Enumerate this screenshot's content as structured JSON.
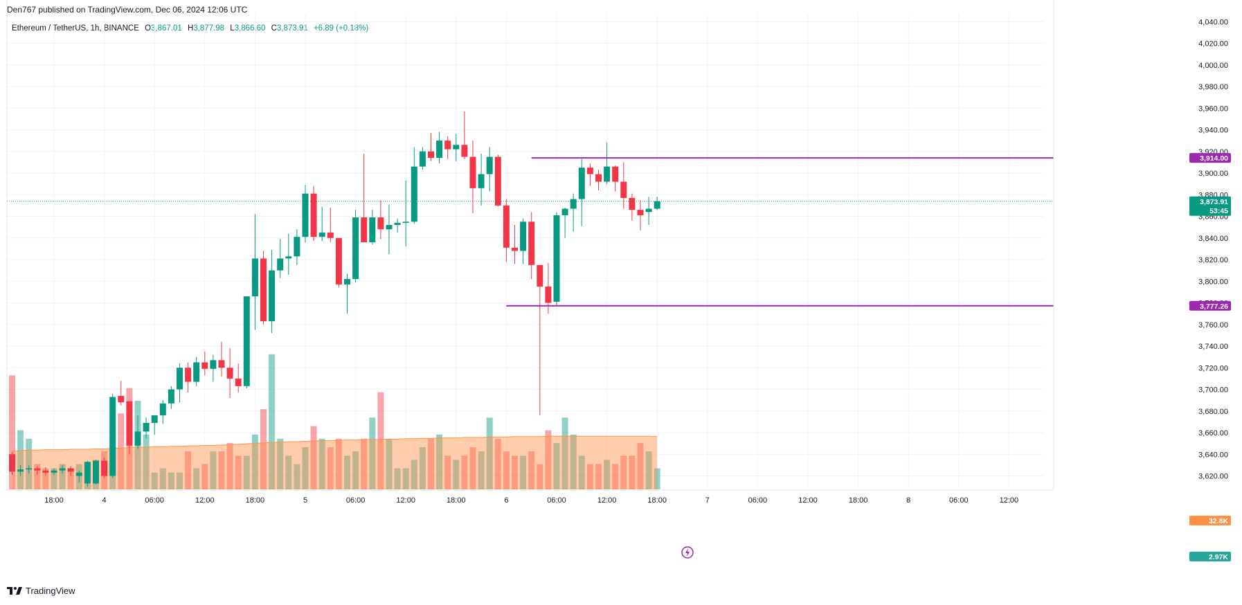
{
  "header": {
    "published": "Den767 published on TradingView.com, Dec 06, 2024 12:06 UTC"
  },
  "legend": {
    "symbol": "Ethereum / TetherUS, 1h, BINANCE",
    "open_label": "O",
    "open": "3,867.01",
    "high_label": "H",
    "high": "3,877.98",
    "low_label": "L",
    "low": "3,866.60",
    "close_label": "C",
    "close": "3,873.91",
    "change": "+6.89 (+0.18%)"
  },
  "footer": {
    "brand": "TradingView"
  },
  "colors": {
    "up": "#089981",
    "down": "#f23645",
    "level": "#9c27b0",
    "volume_ma": "#ff9147"
  },
  "chart_data": {
    "type": "candlestick",
    "symbol": "ETHUSDT",
    "interval": "1h",
    "ylim": [
      3612,
      4044
    ],
    "y_ticks": [
      3620,
      3640,
      3660,
      3680,
      3700,
      3720,
      3740,
      3760,
      3780,
      3800,
      3820,
      3840,
      3860,
      3880,
      3900,
      3920,
      3940,
      3960,
      3980,
      4000,
      4020,
      4040
    ],
    "y_tick_labels": [
      "3,620.00",
      "3,640.00",
      "3,660.00",
      "3,680.00",
      "3,700.00",
      "3,720.00",
      "3,740.00",
      "3,760.00",
      "3,780.00",
      "3,800.00",
      "3,820.00",
      "3,840.00",
      "3,860.00",
      "3,880.00",
      "3,900.00",
      "3,920.00",
      "3,940.00",
      "3,960.00",
      "3,980.00",
      "4,000.00",
      "4,020.00",
      "4,040.00"
    ],
    "x_ticks": [
      {
        "hour": 5,
        "label": "18:00"
      },
      {
        "hour": 11,
        "label": "4"
      },
      {
        "hour": 17,
        "label": "06:00"
      },
      {
        "hour": 23,
        "label": "12:00"
      },
      {
        "hour": 29,
        "label": "18:00"
      },
      {
        "hour": 35,
        "label": "5"
      },
      {
        "hour": 41,
        "label": "06:00"
      },
      {
        "hour": 47,
        "label": "12:00"
      },
      {
        "hour": 53,
        "label": "18:00"
      },
      {
        "hour": 59,
        "label": "6"
      },
      {
        "hour": 65,
        "label": "06:00"
      },
      {
        "hour": 71,
        "label": "12:00"
      },
      {
        "hour": 77,
        "label": "18:00"
      },
      {
        "hour": 83,
        "label": "7"
      },
      {
        "hour": 89,
        "label": "06:00"
      },
      {
        "hour": 95,
        "label": "12:00"
      },
      {
        "hour": 101,
        "label": "18:00"
      },
      {
        "hour": 107,
        "label": "8"
      },
      {
        "hour": 113,
        "label": "06:00"
      },
      {
        "hour": 119,
        "label": "12:00"
      }
    ],
    "candles": [
      {
        "o": 3640,
        "h": 3642,
        "l": 3621,
        "c": 3624
      },
      {
        "o": 3624,
        "h": 3630,
        "l": 3620,
        "c": 3626
      },
      {
        "o": 3626,
        "h": 3630,
        "l": 3622,
        "c": 3627
      },
      {
        "o": 3627,
        "h": 3629,
        "l": 3621,
        "c": 3625
      },
      {
        "o": 3625,
        "h": 3628,
        "l": 3620,
        "c": 3623
      },
      {
        "o": 3623,
        "h": 3627,
        "l": 3621,
        "c": 3625
      },
      {
        "o": 3625,
        "h": 3630,
        "l": 3622,
        "c": 3627
      },
      {
        "o": 3627,
        "h": 3629,
        "l": 3620,
        "c": 3624
      },
      {
        "o": 3620,
        "h": 3625,
        "l": 3614,
        "c": 3623
      },
      {
        "o": 3613,
        "h": 3634,
        "l": 3610,
        "c": 3633
      },
      {
        "o": 3613,
        "h": 3635,
        "l": 3612,
        "c": 3634
      },
      {
        "o": 3634,
        "h": 3637,
        "l": 3618,
        "c": 3620
      },
      {
        "o": 3620,
        "h": 3696,
        "l": 3618,
        "c": 3693
      },
      {
        "o": 3694,
        "h": 3708,
        "l": 3685,
        "c": 3688
      },
      {
        "o": 3689,
        "h": 3689,
        "l": 3640,
        "c": 3648
      },
      {
        "o": 3648,
        "h": 3676,
        "l": 3645,
        "c": 3661
      },
      {
        "o": 3661,
        "h": 3674,
        "l": 3655,
        "c": 3669
      },
      {
        "o": 3669,
        "h": 3676,
        "l": 3658,
        "c": 3676
      },
      {
        "o": 3676,
        "h": 3690,
        "l": 3668,
        "c": 3687
      },
      {
        "o": 3687,
        "h": 3703,
        "l": 3682,
        "c": 3700
      },
      {
        "o": 3700,
        "h": 3724,
        "l": 3688,
        "c": 3720
      },
      {
        "o": 3720,
        "h": 3725,
        "l": 3697,
        "c": 3707
      },
      {
        "o": 3707,
        "h": 3730,
        "l": 3703,
        "c": 3725
      },
      {
        "o": 3725,
        "h": 3735,
        "l": 3713,
        "c": 3719
      },
      {
        "o": 3719,
        "h": 3732,
        "l": 3707,
        "c": 3727
      },
      {
        "o": 3727,
        "h": 3744,
        "l": 3712,
        "c": 3720
      },
      {
        "o": 3720,
        "h": 3738,
        "l": 3692,
        "c": 3710
      },
      {
        "o": 3710,
        "h": 3724,
        "l": 3697,
        "c": 3703
      },
      {
        "o": 3703,
        "h": 3784,
        "l": 3701,
        "c": 3786
      },
      {
        "o": 3786,
        "h": 3862,
        "l": 3755,
        "c": 3821
      },
      {
        "o": 3821,
        "h": 3828,
        "l": 3760,
        "c": 3763
      },
      {
        "o": 3763,
        "h": 3829,
        "l": 3752,
        "c": 3810
      },
      {
        "o": 3810,
        "h": 3839,
        "l": 3803,
        "c": 3821
      },
      {
        "o": 3821,
        "h": 3844,
        "l": 3806,
        "c": 3823
      },
      {
        "o": 3823,
        "h": 3848,
        "l": 3815,
        "c": 3841
      },
      {
        "o": 3841,
        "h": 3889,
        "l": 3836,
        "c": 3881
      },
      {
        "o": 3881,
        "h": 3888,
        "l": 3837,
        "c": 3841
      },
      {
        "o": 3841,
        "h": 3869,
        "l": 3837,
        "c": 3845
      },
      {
        "o": 3845,
        "h": 3868,
        "l": 3836,
        "c": 3840
      },
      {
        "o": 3840,
        "h": 3840,
        "l": 3794,
        "c": 3797
      },
      {
        "o": 3797,
        "h": 3807,
        "l": 3770,
        "c": 3802
      },
      {
        "o": 3802,
        "h": 3866,
        "l": 3799,
        "c": 3859
      },
      {
        "o": 3859,
        "h": 3918,
        "l": 3836,
        "c": 3836
      },
      {
        "o": 3836,
        "h": 3866,
        "l": 3834,
        "c": 3859
      },
      {
        "o": 3859,
        "h": 3875,
        "l": 3839,
        "c": 3848
      },
      {
        "o": 3848,
        "h": 3871,
        "l": 3825,
        "c": 3852
      },
      {
        "o": 3852,
        "h": 3858,
        "l": 3845,
        "c": 3854
      },
      {
        "o": 3854,
        "h": 3893,
        "l": 3832,
        "c": 3855
      },
      {
        "o": 3855,
        "h": 3924,
        "l": 3853,
        "c": 3906
      },
      {
        "o": 3906,
        "h": 3924,
        "l": 3903,
        "c": 3920
      },
      {
        "o": 3920,
        "h": 3937,
        "l": 3911,
        "c": 3914
      },
      {
        "o": 3914,
        "h": 3938,
        "l": 3909,
        "c": 3930
      },
      {
        "o": 3930,
        "h": 3934,
        "l": 3913,
        "c": 3922
      },
      {
        "o": 3922,
        "h": 3936,
        "l": 3911,
        "c": 3926
      },
      {
        "o": 3926,
        "h": 3957,
        "l": 3913,
        "c": 3915
      },
      {
        "o": 3915,
        "h": 3930,
        "l": 3863,
        "c": 3886
      },
      {
        "o": 3886,
        "h": 3918,
        "l": 3870,
        "c": 3899
      },
      {
        "o": 3899,
        "h": 3924,
        "l": 3883,
        "c": 3915
      },
      {
        "o": 3915,
        "h": 3917,
        "l": 3869,
        "c": 3870
      },
      {
        "o": 3870,
        "h": 3876,
        "l": 3818,
        "c": 3831
      },
      {
        "o": 3831,
        "h": 3852,
        "l": 3816,
        "c": 3828
      },
      {
        "o": 3828,
        "h": 3858,
        "l": 3816,
        "c": 3855
      },
      {
        "o": 3855,
        "h": 3864,
        "l": 3802,
        "c": 3815
      },
      {
        "o": 3815,
        "h": 3815,
        "l": 3676,
        "c": 3795
      },
      {
        "o": 3795,
        "h": 3817,
        "l": 3770,
        "c": 3780
      },
      {
        "o": 3781,
        "h": 3864,
        "l": 3777,
        "c": 3861
      },
      {
        "o": 3861,
        "h": 3868,
        "l": 3840,
        "c": 3867
      },
      {
        "o": 3867,
        "h": 3881,
        "l": 3846,
        "c": 3876
      },
      {
        "o": 3876,
        "h": 3913,
        "l": 3851,
        "c": 3905
      },
      {
        "o": 3905,
        "h": 3909,
        "l": 3888,
        "c": 3899
      },
      {
        "o": 3899,
        "h": 3903,
        "l": 3884,
        "c": 3892
      },
      {
        "o": 3892,
        "h": 3928,
        "l": 3890,
        "c": 3906
      },
      {
        "o": 3906,
        "h": 3907,
        "l": 3883,
        "c": 3892
      },
      {
        "o": 3892,
        "h": 3910,
        "l": 3867,
        "c": 3877
      },
      {
        "o": 3877,
        "h": 3881,
        "l": 3856,
        "c": 3866
      },
      {
        "o": 3866,
        "h": 3875,
        "l": 3847,
        "c": 3861
      },
      {
        "o": 3864,
        "h": 3878,
        "l": 3852,
        "c": 3867
      },
      {
        "o": 3867,
        "h": 3878,
        "l": 3866,
        "c": 3874
      }
    ],
    "volumes": [
      27,
      14,
      12,
      6,
      5,
      5,
      6,
      5,
      6,
      5,
      7,
      9,
      14,
      18,
      24,
      21,
      13,
      4,
      5,
      4,
      4,
      9,
      5,
      6,
      9,
      9,
      11,
      8,
      8,
      13,
      19,
      32,
      12,
      8,
      6,
      10,
      15,
      12,
      10,
      12,
      8,
      9,
      12,
      17,
      23,
      12,
      5,
      5,
      7,
      10,
      12,
      13,
      8,
      7,
      8,
      10,
      9,
      17,
      12,
      9,
      8,
      8,
      9,
      6,
      14,
      11,
      17,
      13,
      8,
      6,
      6,
      7,
      6,
      8,
      8,
      11,
      9,
      5
    ],
    "volume_ma": [
      9,
      9.2,
      9.3,
      9.3,
      9.4,
      9.4,
      9.4,
      9.5,
      9.5,
      9.5,
      9.6,
      9.6,
      9.7,
      9.8,
      9.9,
      10,
      10,
      10.1,
      10.1,
      10.2,
      10.2,
      10.3,
      10.3,
      10.4,
      10.4,
      10.5,
      10.6,
      10.7,
      10.8,
      10.9,
      11,
      11.1,
      11.2,
      11.3,
      11.3,
      11.4,
      11.5,
      11.5,
      11.6,
      11.6,
      11.7,
      11.7,
      11.8,
      11.8,
      11.8,
      11.9,
      11.9,
      12,
      12,
      12.1,
      12.1,
      12.2,
      12.2,
      12.2,
      12.3,
      12.3,
      12.3,
      12.4,
      12.4,
      12.4,
      12.5,
      12.5,
      12.5,
      12.5,
      12.6,
      12.6,
      12.6,
      12.6,
      12.6,
      12.6,
      12.6,
      12.6,
      12.6,
      12.6,
      12.6,
      12.6,
      12.6,
      12.5
    ],
    "levels": [
      {
        "price": 3914.0,
        "label": "3,914.00",
        "from_index": 62
      },
      {
        "price": 3777.26,
        "label": "3,777.26",
        "from_index": 59
      }
    ],
    "last_price": {
      "price": 3873.91,
      "label": "3,873.91",
      "countdown": "53:45"
    },
    "volume_labels": {
      "ma": "32.8K",
      "last": "2.97K"
    }
  }
}
